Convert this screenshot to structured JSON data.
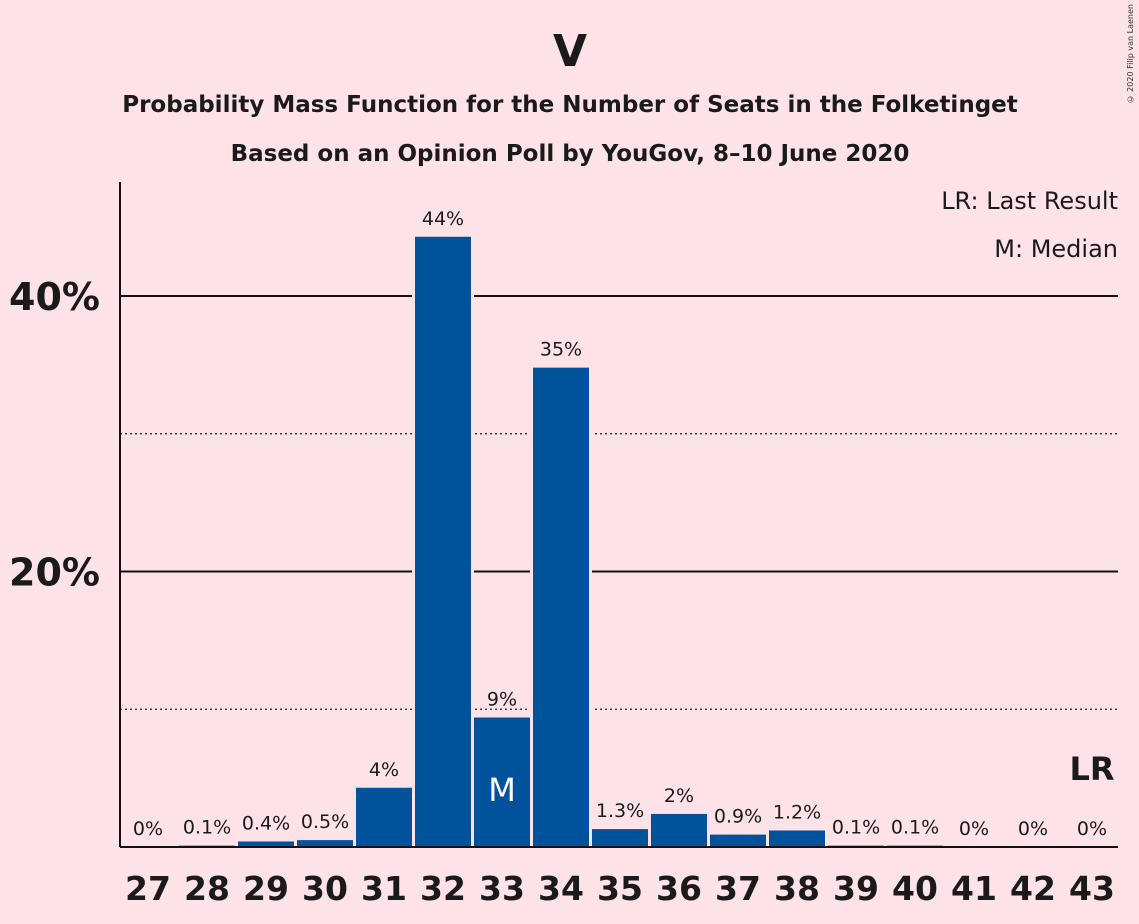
{
  "copyright": "© 2020 Filip van Laenen",
  "chart_data": {
    "type": "bar",
    "title": "V",
    "subtitle": "Probability Mass Function for the Number of Seats in the Folketinget",
    "subtitle2": "Based on an Opinion Poll by YouGov, 8–10 June 2020",
    "categories": [
      "27",
      "28",
      "29",
      "30",
      "31",
      "32",
      "33",
      "34",
      "35",
      "36",
      "37",
      "38",
      "39",
      "40",
      "41",
      "42",
      "43"
    ],
    "values": [
      0,
      0.1,
      0.4,
      0.5,
      4.3,
      44.3,
      9.4,
      34.8,
      1.3,
      2.4,
      0.9,
      1.2,
      0.1,
      0.1,
      0,
      0,
      0
    ],
    "labels": [
      "0%",
      "0.1%",
      "0.4%",
      "0.5%",
      "4%",
      "44%",
      "9%",
      "35%",
      "1.3%",
      "2%",
      "0.9%",
      "1.2%",
      "0.1%",
      "0.1%",
      "0%",
      "0%",
      "0%"
    ],
    "ylim": [
      0,
      48
    ],
    "yticks": [
      {
        "value": 20,
        "label": "20%"
      },
      {
        "value": 40,
        "label": "40%"
      }
    ],
    "minor_gridlines": [
      10,
      30
    ],
    "bar_color": "#00539b",
    "median_category": "33",
    "median_marker": "M",
    "last_result_category": "43",
    "last_result_marker": "LR",
    "legend": [
      "LR: Last Result",
      "M: Median"
    ],
    "legend_position": "top-right"
  }
}
